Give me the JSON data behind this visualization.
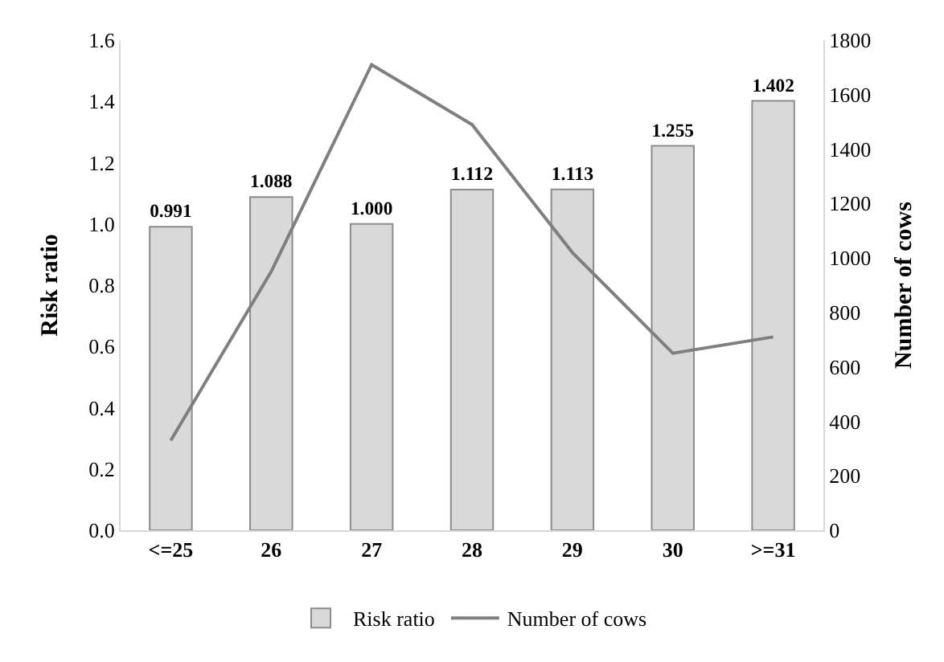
{
  "chart_data": {
    "type": "bar",
    "categories": [
      "<=25",
      "26",
      "27",
      "28",
      "29",
      "30",
      ">=31"
    ],
    "series": [
      {
        "name": "Risk ratio",
        "color": "#d9d9d9",
        "values": [
          0.991,
          1.088,
          1.0,
          1.112,
          1.113,
          1.255,
          1.402
        ]
      },
      {
        "name": "Number of cows",
        "type": "line",
        "axis": "y2",
        "color": "#7f7f7f",
        "values": [
          330,
          950,
          1710,
          1490,
          1020,
          650,
          710
        ]
      }
    ],
    "ylabel": "Risk ratio",
    "y2label": "Number of cows",
    "ylim": [
      0,
      1.6
    ],
    "yticks": [
      {
        "value": 0,
        "label": "0.0"
      },
      {
        "value": 0.2,
        "label": "0.2"
      },
      {
        "value": 0.4,
        "label": "0.4"
      },
      {
        "value": 0.6,
        "label": "0.6"
      },
      {
        "value": 0.8,
        "label": "0.8"
      },
      {
        "value": 1,
        "label": "1.0"
      },
      {
        "value": 1.2,
        "label": "1.2"
      },
      {
        "value": 1.4,
        "label": "1.4"
      },
      {
        "value": 1.6,
        "label": "1.6"
      }
    ],
    "y2lim": [
      0,
      1800
    ],
    "y2ticks": [
      0,
      200,
      400,
      600,
      800,
      1000,
      1200,
      1400,
      1600,
      1800
    ],
    "value_labels": [
      "0.991",
      "1.088",
      "1.000",
      "1.112",
      "1.113",
      "1.255",
      "1.402"
    ],
    "legend": "bottom",
    "marker": "none",
    "line_style": "solid"
  }
}
